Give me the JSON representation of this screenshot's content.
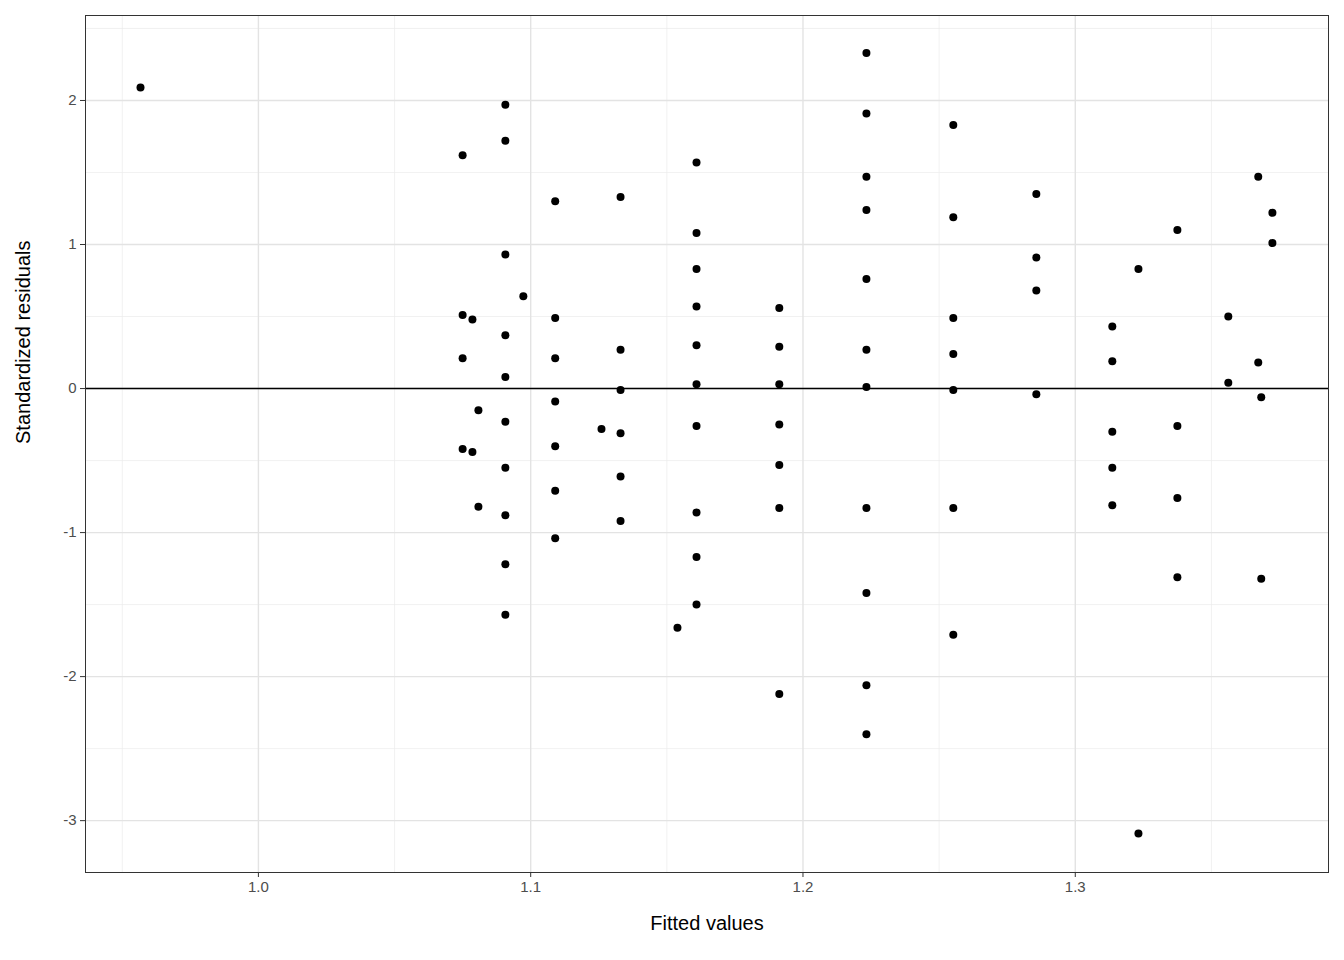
{
  "chart_data": {
    "type": "scatter",
    "x_label": "Fitted values",
    "y_label": "Standardized residuals",
    "color": "#000000",
    "marker": "circle",
    "grid": true,
    "hline": 0,
    "xlim": [
      0.9365,
      1.393
    ],
    "ylim": [
      -3.36,
      2.59
    ],
    "xticks": [
      {
        "value": 1,
        "label": "1.0"
      },
      1.1,
      1.2,
      1.3
    ],
    "yticks": [
      -3,
      -2,
      -1,
      0,
      1,
      2
    ],
    "x": [
      0.9567,
      1.075,
      1.075,
      1.075,
      1.075,
      1.0786,
      1.0786,
      1.0808,
      1.0808,
      1.0907,
      1.0907,
      1.0907,
      1.0907,
      1.0907,
      1.0907,
      1.0907,
      1.0907,
      1.0907,
      1.0907,
      1.0973,
      1.109,
      1.109,
      1.109,
      1.109,
      1.109,
      1.109,
      1.109,
      1.126,
      1.133,
      1.133,
      1.133,
      1.133,
      1.133,
      1.133,
      1.1539,
      1.1609,
      1.1609,
      1.1609,
      1.1609,
      1.1609,
      1.1609,
      1.1609,
      1.1609,
      1.1609,
      1.1609,
      1.1913,
      1.1913,
      1.1913,
      1.1913,
      1.1913,
      1.1913,
      1.1913,
      1.2233,
      1.2233,
      1.2233,
      1.2233,
      1.2233,
      1.2233,
      1.2233,
      1.2233,
      1.2233,
      1.2233,
      1.2233,
      1.2552,
      1.2552,
      1.2552,
      1.2552,
      1.2552,
      1.2552,
      1.2552,
      1.2857,
      1.2857,
      1.2857,
      1.2857,
      1.3136,
      1.3136,
      1.3136,
      1.3136,
      1.3136,
      1.3232,
      1.3232,
      1.3375,
      1.3375,
      1.3375,
      1.3375,
      1.3562,
      1.3562,
      1.3672,
      1.3672,
      1.3683,
      1.3683,
      1.3724,
      1.3724
    ],
    "y": [
      2.09,
      1.62,
      0.51,
      0.21,
      -0.42,
      0.48,
      -0.44,
      -0.15,
      -0.82,
      1.97,
      1.72,
      0.93,
      0.37,
      0.08,
      -0.23,
      -0.55,
      -0.88,
      -1.22,
      -1.57,
      0.64,
      1.3,
      0.49,
      0.21,
      -0.09,
      -0.4,
      -0.71,
      -1.04,
      -0.28,
      1.33,
      0.27,
      -0.01,
      -0.31,
      -0.61,
      -0.92,
      -1.66,
      1.57,
      1.08,
      0.83,
      0.57,
      0.3,
      0.03,
      -0.26,
      -0.86,
      -1.17,
      -1.5,
      0.56,
      0.29,
      0.03,
      -0.25,
      -0.53,
      -0.83,
      -2.12,
      2.33,
      1.91,
      1.47,
      1.24,
      0.76,
      0.27,
      0.01,
      -0.83,
      -1.42,
      -2.06,
      -2.4,
      1.83,
      1.19,
      0.49,
      0.24,
      -0.01,
      -0.83,
      -1.71,
      1.35,
      0.91,
      0.68,
      -0.04,
      0.43,
      0.19,
      -0.3,
      -0.55,
      -0.81,
      0.83,
      -3.09,
      1.1,
      -0.26,
      -0.76,
      -1.31,
      0.5,
      0.04,
      1.47,
      0.18,
      -0.06,
      -1.32,
      1.22,
      1.01
    ]
  }
}
